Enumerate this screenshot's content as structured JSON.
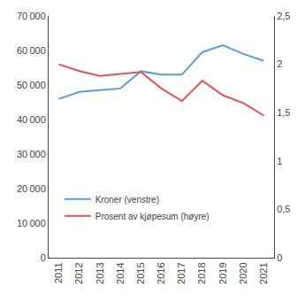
{
  "chart_data": {
    "type": "line",
    "x": [
      2011,
      2012,
      2013,
      2014,
      2015,
      2016,
      2017,
      2018,
      2019,
      2020,
      2021
    ],
    "xlim": [
      2010.5,
      2021.5
    ],
    "xticks": [
      2011,
      2012,
      2013,
      2014,
      2015,
      2016,
      2017,
      2018,
      2019,
      2020,
      2021
    ],
    "series": [
      {
        "name": "Kroner (venstre)",
        "color": "#5b9bd5",
        "values": [
          46000,
          48000,
          48500,
          49000,
          54000,
          53000,
          53000,
          59500,
          61500,
          59000,
          57000
        ]
      },
      {
        "name": "Prosent av kjøpesum (høyre)",
        "color": "#e05252",
        "axis": "y2",
        "values": [
          2.0,
          1.93,
          1.88,
          1.9,
          1.92,
          1.75,
          1.62,
          1.83,
          1.68,
          1.6,
          1.47
        ]
      }
    ],
    "ylim": [
      0,
      70000
    ],
    "yticks": [
      0,
      {
        "value": 10000,
        "label": "10 000"
      },
      {
        "value": 20000,
        "label": "20 000"
      },
      {
        "value": 30000,
        "label": "30 000"
      },
      {
        "value": 40000,
        "label": "40 000"
      },
      {
        "value": 50000,
        "label": "50 000"
      },
      {
        "value": 60000,
        "label": "60 000"
      },
      {
        "value": 70000,
        "label": "70 000"
      }
    ],
    "y2lim": [
      0,
      2.5
    ],
    "y2ticks": [
      0,
      {
        "value": 0.5,
        "label": "0,5"
      },
      1,
      {
        "value": 1.5,
        "label": "1,5"
      },
      2,
      {
        "value": 2.5,
        "label": "2,5"
      }
    ],
    "grid": false,
    "legend": "lower left"
  }
}
